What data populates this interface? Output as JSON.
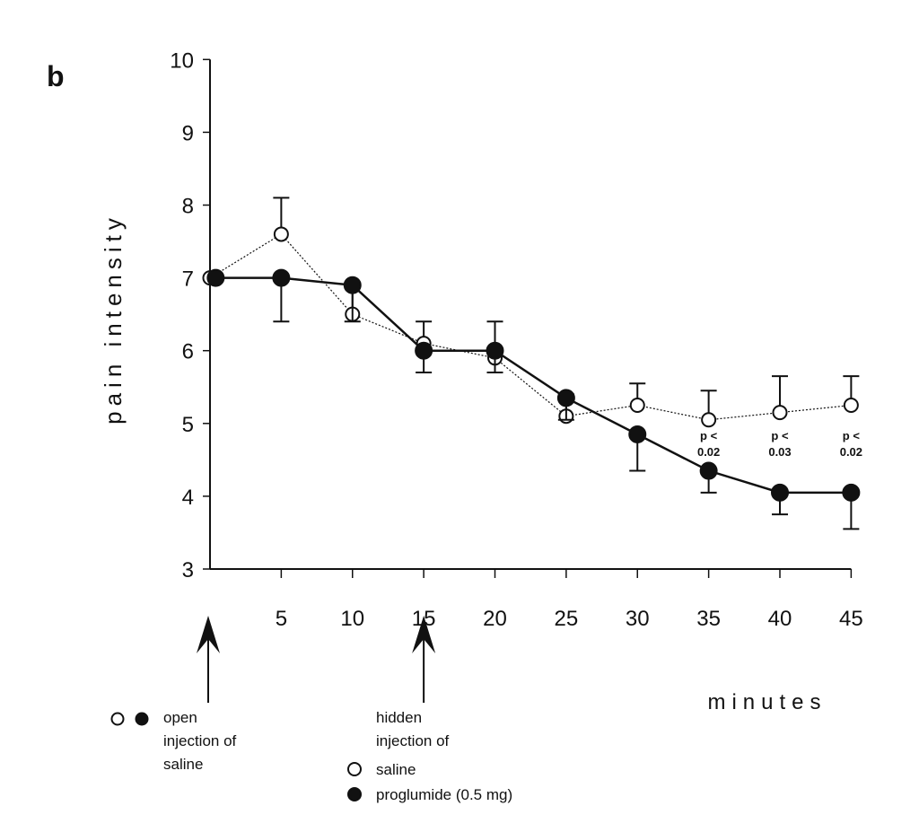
{
  "chart_data": {
    "type": "line",
    "panel_label": "b",
    "title": "",
    "xlabel": "minutes",
    "ylabel": "pain intensity",
    "xlim": [
      0,
      45
    ],
    "ylim": [
      3,
      10
    ],
    "x_ticks": [
      5,
      10,
      15,
      20,
      25,
      30,
      35,
      40,
      45
    ],
    "y_ticks": [
      3,
      4,
      5,
      6,
      7,
      8,
      9,
      10
    ],
    "grid": false,
    "x": [
      0,
      5,
      10,
      15,
      20,
      25,
      30,
      35,
      40,
      45
    ],
    "series": [
      {
        "name": "saline",
        "marker": "open-circle",
        "line": "dotted",
        "values": [
          7.0,
          7.6,
          6.5,
          6.1,
          5.9,
          5.1,
          5.25,
          5.05,
          5.15,
          5.25
        ],
        "error": [
          null,
          0.5,
          0.4,
          0.3,
          0.5,
          0.3,
          0.3,
          0.4,
          0.5,
          0.4
        ]
      },
      {
        "name": "proglumide (0.5 mg)",
        "marker": "filled-circle",
        "line": "solid",
        "values": [
          7.0,
          7.0,
          6.9,
          6.0,
          6.0,
          5.35,
          4.85,
          4.35,
          4.05,
          4.05
        ],
        "error": [
          null,
          0.6,
          0.5,
          0.3,
          0.3,
          0.3,
          0.5,
          0.3,
          0.3,
          0.5
        ]
      }
    ],
    "annotations": [
      {
        "x": 35,
        "line1": "p   <",
        "line2": "0.02"
      },
      {
        "x": 40,
        "line1": "p   <",
        "line2": "0.03"
      },
      {
        "x": 45,
        "line1": "p   <",
        "line2": "0.02"
      }
    ],
    "events": [
      {
        "x": 0,
        "lines": [
          "open",
          "injection of",
          "saline"
        ],
        "markers": [
          "open-circle",
          "filled-circle"
        ]
      },
      {
        "x": 15,
        "lines": [
          "hidden",
          "injection of"
        ],
        "legend": [
          {
            "marker": "open-circle",
            "label": "saline"
          },
          {
            "marker": "filled-circle",
            "label": "proglumide (0.5 mg)"
          }
        ]
      }
    ]
  }
}
